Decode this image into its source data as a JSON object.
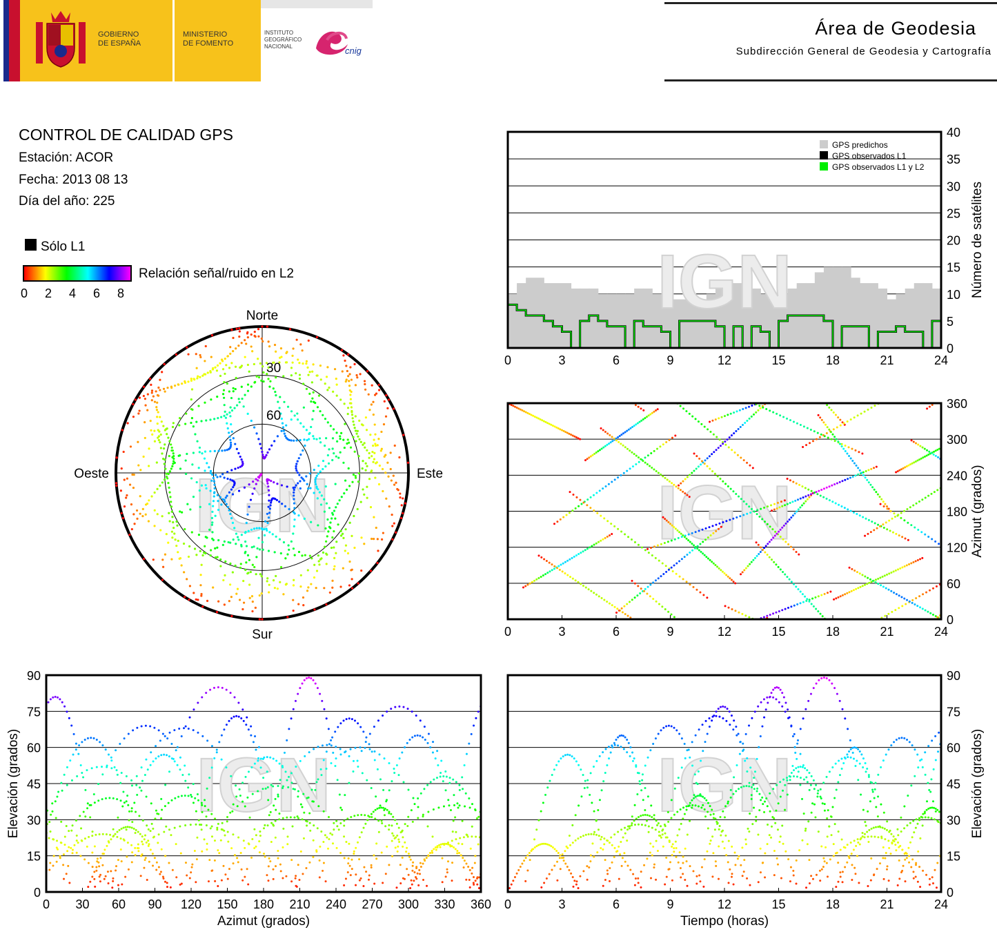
{
  "header": {
    "gov_line1": "GOBIERNO",
    "gov_line2": "DE ESPAÑA",
    "min_line1": "MINISTERIO",
    "min_line2": "DE FOMENTO",
    "inst_line1": "INSTITUTO",
    "inst_line2": "GEOGRÁFICO",
    "inst_line3": "NACIONAL",
    "cnig_logo_text": "cnig",
    "area_title": "Área de Geodesia",
    "area_subtitle": "Subdirección General de Geodesia y Cartografía"
  },
  "info": {
    "title": "CONTROL DE CALIDAD GPS",
    "station": "Estación: ACOR",
    "date": "Fecha: 2013 08 13",
    "doy": "Día del año: 225",
    "l1_only_label": "Sólo L1",
    "snr_label": "Relación señal/ruido en L2",
    "snr_ticks": [
      "0",
      "2",
      "4",
      "6",
      "8"
    ]
  },
  "colors": {
    "snr_scale": [
      "#ff0000",
      "#ffff00",
      "#00ff00",
      "#00ffff",
      "#0000ff",
      "#ff00ff"
    ],
    "predicted": "#cccccc",
    "observed_l1": "#000000",
    "observed_l1l2": "#00ee00"
  },
  "watermark": "IGN",
  "chart_data": [
    {
      "id": "skyplot",
      "type": "scatter",
      "subtype": "polar-skyplot",
      "directions": {
        "north": "Norte",
        "south": "Sur",
        "east": "Este",
        "west": "Oeste"
      },
      "elevation_rings": [
        "30",
        "60"
      ]
    },
    {
      "id": "satellite_count",
      "type": "area",
      "ylabel": "Número de satélites",
      "xlim": [
        0,
        24
      ],
      "ylim": [
        0,
        40
      ],
      "xticks": [
        "0",
        "3",
        "6",
        "9",
        "12",
        "15",
        "18",
        "21",
        "24"
      ],
      "yticks": [
        "0",
        "5",
        "10",
        "15",
        "20",
        "25",
        "30",
        "35",
        "40"
      ],
      "legend": [
        "GPS predichos",
        "GPS observados L1",
        "GPS observados L1 y L2"
      ],
      "legend_position": "top-right",
      "x": [
        0,
        0.5,
        1,
        1.5,
        2,
        2.5,
        3,
        3.5,
        4,
        4.5,
        5,
        5.5,
        6,
        6.5,
        7,
        7.5,
        8,
        8.5,
        9,
        9.5,
        10,
        10.5,
        11,
        11.5,
        12,
        12.5,
        13,
        13.5,
        14,
        14.5,
        15,
        15.5,
        16,
        16.5,
        17,
        17.5,
        18,
        18.5,
        19,
        19.5,
        20,
        20.5,
        21,
        21.5,
        22,
        22.5,
        23,
        23.5
      ],
      "series": [
        {
          "name": "GPS predichos",
          "values": [
            10,
            12,
            13,
            13,
            12,
            12,
            12,
            11,
            11,
            11,
            10,
            10,
            10,
            10,
            11,
            11,
            10,
            9,
            9,
            9,
            9,
            9,
            10,
            11,
            12,
            12,
            12,
            11,
            10,
            10,
            10,
            11,
            12,
            12,
            14,
            15,
            15,
            15,
            13,
            12,
            12,
            11,
            9,
            10,
            11,
            12,
            12,
            11
          ]
        },
        {
          "name": "GPS observados L1 y L2",
          "values": [
            8,
            7,
            6,
            6,
            5,
            4,
            3,
            0,
            5,
            6,
            5,
            4,
            4,
            0,
            5,
            4,
            4,
            3,
            0,
            5,
            5,
            5,
            5,
            4,
            0,
            4,
            0,
            4,
            3,
            0,
            5,
            6,
            6,
            6,
            6,
            5,
            0,
            4,
            4,
            4,
            0,
            3,
            3,
            4,
            3,
            3,
            0,
            5
          ]
        }
      ]
    },
    {
      "id": "azimuth_time",
      "type": "scatter",
      "ylabel": "Azimut (grados)",
      "xlim": [
        0,
        24
      ],
      "ylim": [
        0,
        360
      ],
      "xticks": [
        "0",
        "3",
        "6",
        "9",
        "12",
        "15",
        "18",
        "21",
        "24"
      ],
      "yticks": [
        "0",
        "60",
        "120",
        "180",
        "240",
        "300",
        "360"
      ]
    },
    {
      "id": "elevation_azimuth",
      "type": "scatter",
      "xlabel": "Azimut (grados)",
      "ylabel": "Elevación (grados)",
      "xlim": [
        0,
        360
      ],
      "ylim": [
        0,
        90
      ],
      "xticks": [
        "0",
        "30",
        "60",
        "90",
        "120",
        "150",
        "180",
        "210",
        "240",
        "270",
        "300",
        "330",
        "360"
      ],
      "yticks": [
        "0",
        "15",
        "30",
        "45",
        "60",
        "75",
        "90"
      ]
    },
    {
      "id": "elevation_time",
      "type": "scatter",
      "xlabel": "Tiempo (horas)",
      "ylabel": "Elevación (grados)",
      "xlim": [
        0,
        24
      ],
      "ylim": [
        0,
        90
      ],
      "xticks": [
        "0",
        "3",
        "6",
        "9",
        "12",
        "15",
        "18",
        "21",
        "24"
      ],
      "yticks": [
        "0",
        "15",
        "30",
        "45",
        "60",
        "75",
        "90"
      ]
    }
  ]
}
